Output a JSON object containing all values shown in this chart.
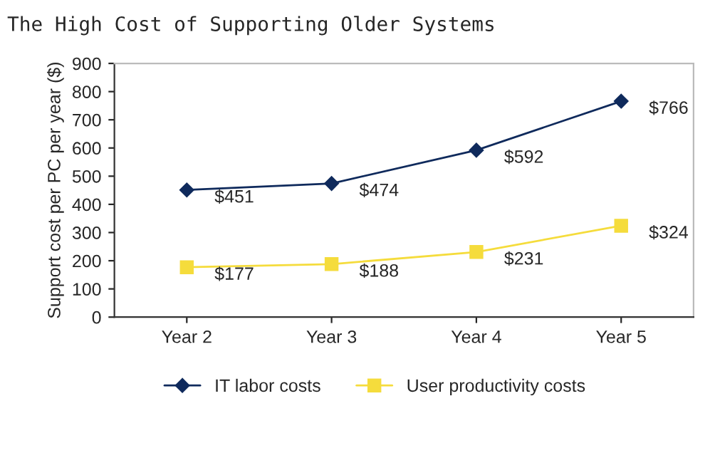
{
  "chart_data": {
    "type": "line",
    "title": "The High Cost of Supporting Older Systems",
    "ylabel": "Support cost per PC per year ($)",
    "categories": [
      "Year 2",
      "Year 3",
      "Year 4",
      "Year 5"
    ],
    "series": [
      {
        "name": "IT labor costs",
        "color": "#0f2a5c",
        "marker": "diamond",
        "values": [
          451,
          474,
          592,
          766
        ],
        "value_labels": [
          "$451",
          "$474",
          "$592",
          "$766"
        ]
      },
      {
        "name": "User productivity costs",
        "color": "#f5dc3c",
        "marker": "square",
        "values": [
          177,
          188,
          231,
          324
        ],
        "value_labels": [
          "$177",
          "$188",
          "$231",
          "$324"
        ]
      }
    ],
    "ylim": [
      0,
      900
    ],
    "yticks": [
      0,
      100,
      200,
      300,
      400,
      500,
      600,
      700,
      800,
      900
    ],
    "grid": false,
    "legend": "bottom",
    "line_style": "solid"
  }
}
